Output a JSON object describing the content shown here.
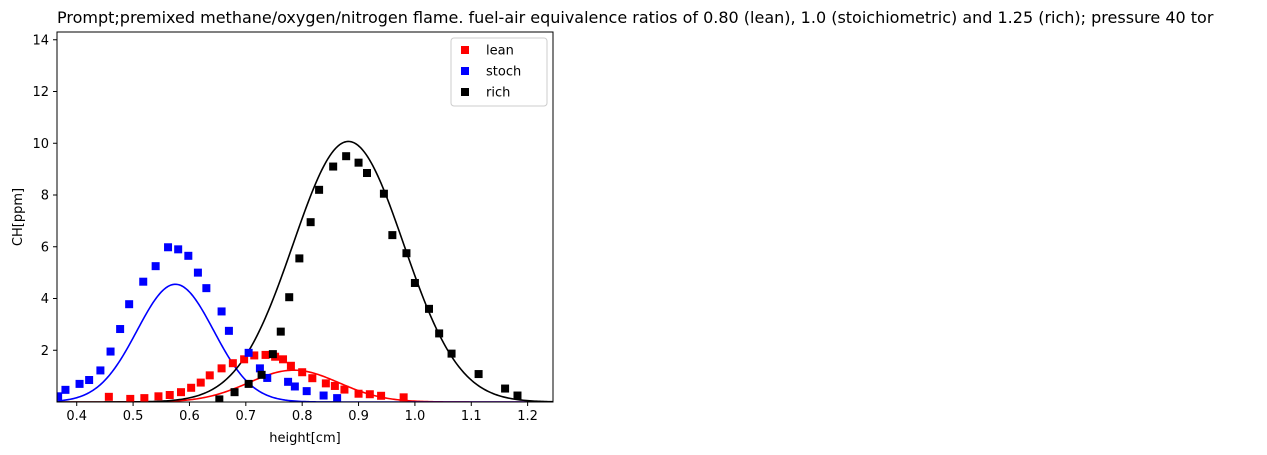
{
  "chart_data": {
    "type": "scatter",
    "title": "Prompt;premixed methane/oxygen/nitrogen flame. fuel-air equivalence ratios of 0.80 (lean), 1.0 (stoichiometric) and 1.25 (rich); pressure 40 tor",
    "xlabel": "height[cm]",
    "ylabel": "CH[ppm]",
    "xlim": [
      0.365,
      1.245
    ],
    "ylim": [
      0.0,
      14.3
    ],
    "xticks": [
      "0.4",
      "0.5",
      "0.6",
      "0.7",
      "0.8",
      "0.9",
      "1.0",
      "1.1",
      "1.2"
    ],
    "yticks": [
      "2",
      "4",
      "6",
      "8",
      "10",
      "12",
      "14"
    ],
    "grid": false,
    "legend_position": "top-right",
    "series": [
      {
        "name": "lean",
        "color": "#ff0000",
        "points": [
          [
            0.457,
            0.2
          ],
          [
            0.495,
            0.12
          ],
          [
            0.52,
            0.15
          ],
          [
            0.545,
            0.22
          ],
          [
            0.565,
            0.27
          ],
          [
            0.585,
            0.38
          ],
          [
            0.603,
            0.55
          ],
          [
            0.62,
            0.75
          ],
          [
            0.636,
            1.03
          ],
          [
            0.657,
            1.3
          ],
          [
            0.677,
            1.5
          ],
          [
            0.697,
            1.65
          ],
          [
            0.715,
            1.8
          ],
          [
            0.735,
            1.82
          ],
          [
            0.752,
            1.75
          ],
          [
            0.766,
            1.65
          ],
          [
            0.78,
            1.4
          ],
          [
            0.8,
            1.15
          ],
          [
            0.818,
            0.92
          ],
          [
            0.842,
            0.72
          ],
          [
            0.858,
            0.62
          ],
          [
            0.875,
            0.48
          ],
          [
            0.9,
            0.32
          ],
          [
            0.92,
            0.3
          ],
          [
            0.94,
            0.24
          ],
          [
            0.98,
            0.18
          ]
        ],
        "fit": {
          "peak_x": 0.785,
          "peak_y": 1.23,
          "sigma": 0.08
        }
      },
      {
        "name": "stoch",
        "color": "#0000ff",
        "points": [
          [
            0.367,
            0.22
          ],
          [
            0.38,
            0.47
          ],
          [
            0.405,
            0.7
          ],
          [
            0.422,
            0.85
          ],
          [
            0.442,
            1.22
          ],
          [
            0.46,
            1.95
          ],
          [
            0.477,
            2.82
          ],
          [
            0.493,
            3.78
          ],
          [
            0.518,
            4.65
          ],
          [
            0.54,
            5.25
          ],
          [
            0.562,
            5.98
          ],
          [
            0.58,
            5.9
          ],
          [
            0.598,
            5.65
          ],
          [
            0.615,
            5.0
          ],
          [
            0.63,
            4.4
          ],
          [
            0.657,
            3.5
          ],
          [
            0.67,
            2.75
          ],
          [
            0.705,
            1.9
          ],
          [
            0.725,
            1.3
          ],
          [
            0.738,
            0.93
          ],
          [
            0.775,
            0.78
          ],
          [
            0.787,
            0.6
          ],
          [
            0.808,
            0.42
          ],
          [
            0.838,
            0.25
          ],
          [
            0.862,
            0.15
          ]
        ],
        "fit": {
          "peak_x": 0.575,
          "peak_y": 4.55,
          "sigma": 0.068
        }
      },
      {
        "name": "rich",
        "color": "#000000",
        "points": [
          [
            0.653,
            0.1
          ],
          [
            0.68,
            0.38
          ],
          [
            0.705,
            0.7
          ],
          [
            0.728,
            1.05
          ],
          [
            0.748,
            1.85
          ],
          [
            0.762,
            2.72
          ],
          [
            0.777,
            4.05
          ],
          [
            0.795,
            5.55
          ],
          [
            0.815,
            6.95
          ],
          [
            0.83,
            8.2
          ],
          [
            0.855,
            9.1
          ],
          [
            0.878,
            9.5
          ],
          [
            0.9,
            9.25
          ],
          [
            0.915,
            8.85
          ],
          [
            0.945,
            8.05
          ],
          [
            0.96,
            6.45
          ],
          [
            0.985,
            5.75
          ],
          [
            1.0,
            4.6
          ],
          [
            1.025,
            3.6
          ],
          [
            1.043,
            2.65
          ],
          [
            1.065,
            1.87
          ],
          [
            1.113,
            1.08
          ],
          [
            1.16,
            0.52
          ],
          [
            1.182,
            0.25
          ]
        ],
        "fit": {
          "peak_x": 0.882,
          "peak_y": 10.07,
          "sigma": 0.098
        }
      }
    ]
  }
}
